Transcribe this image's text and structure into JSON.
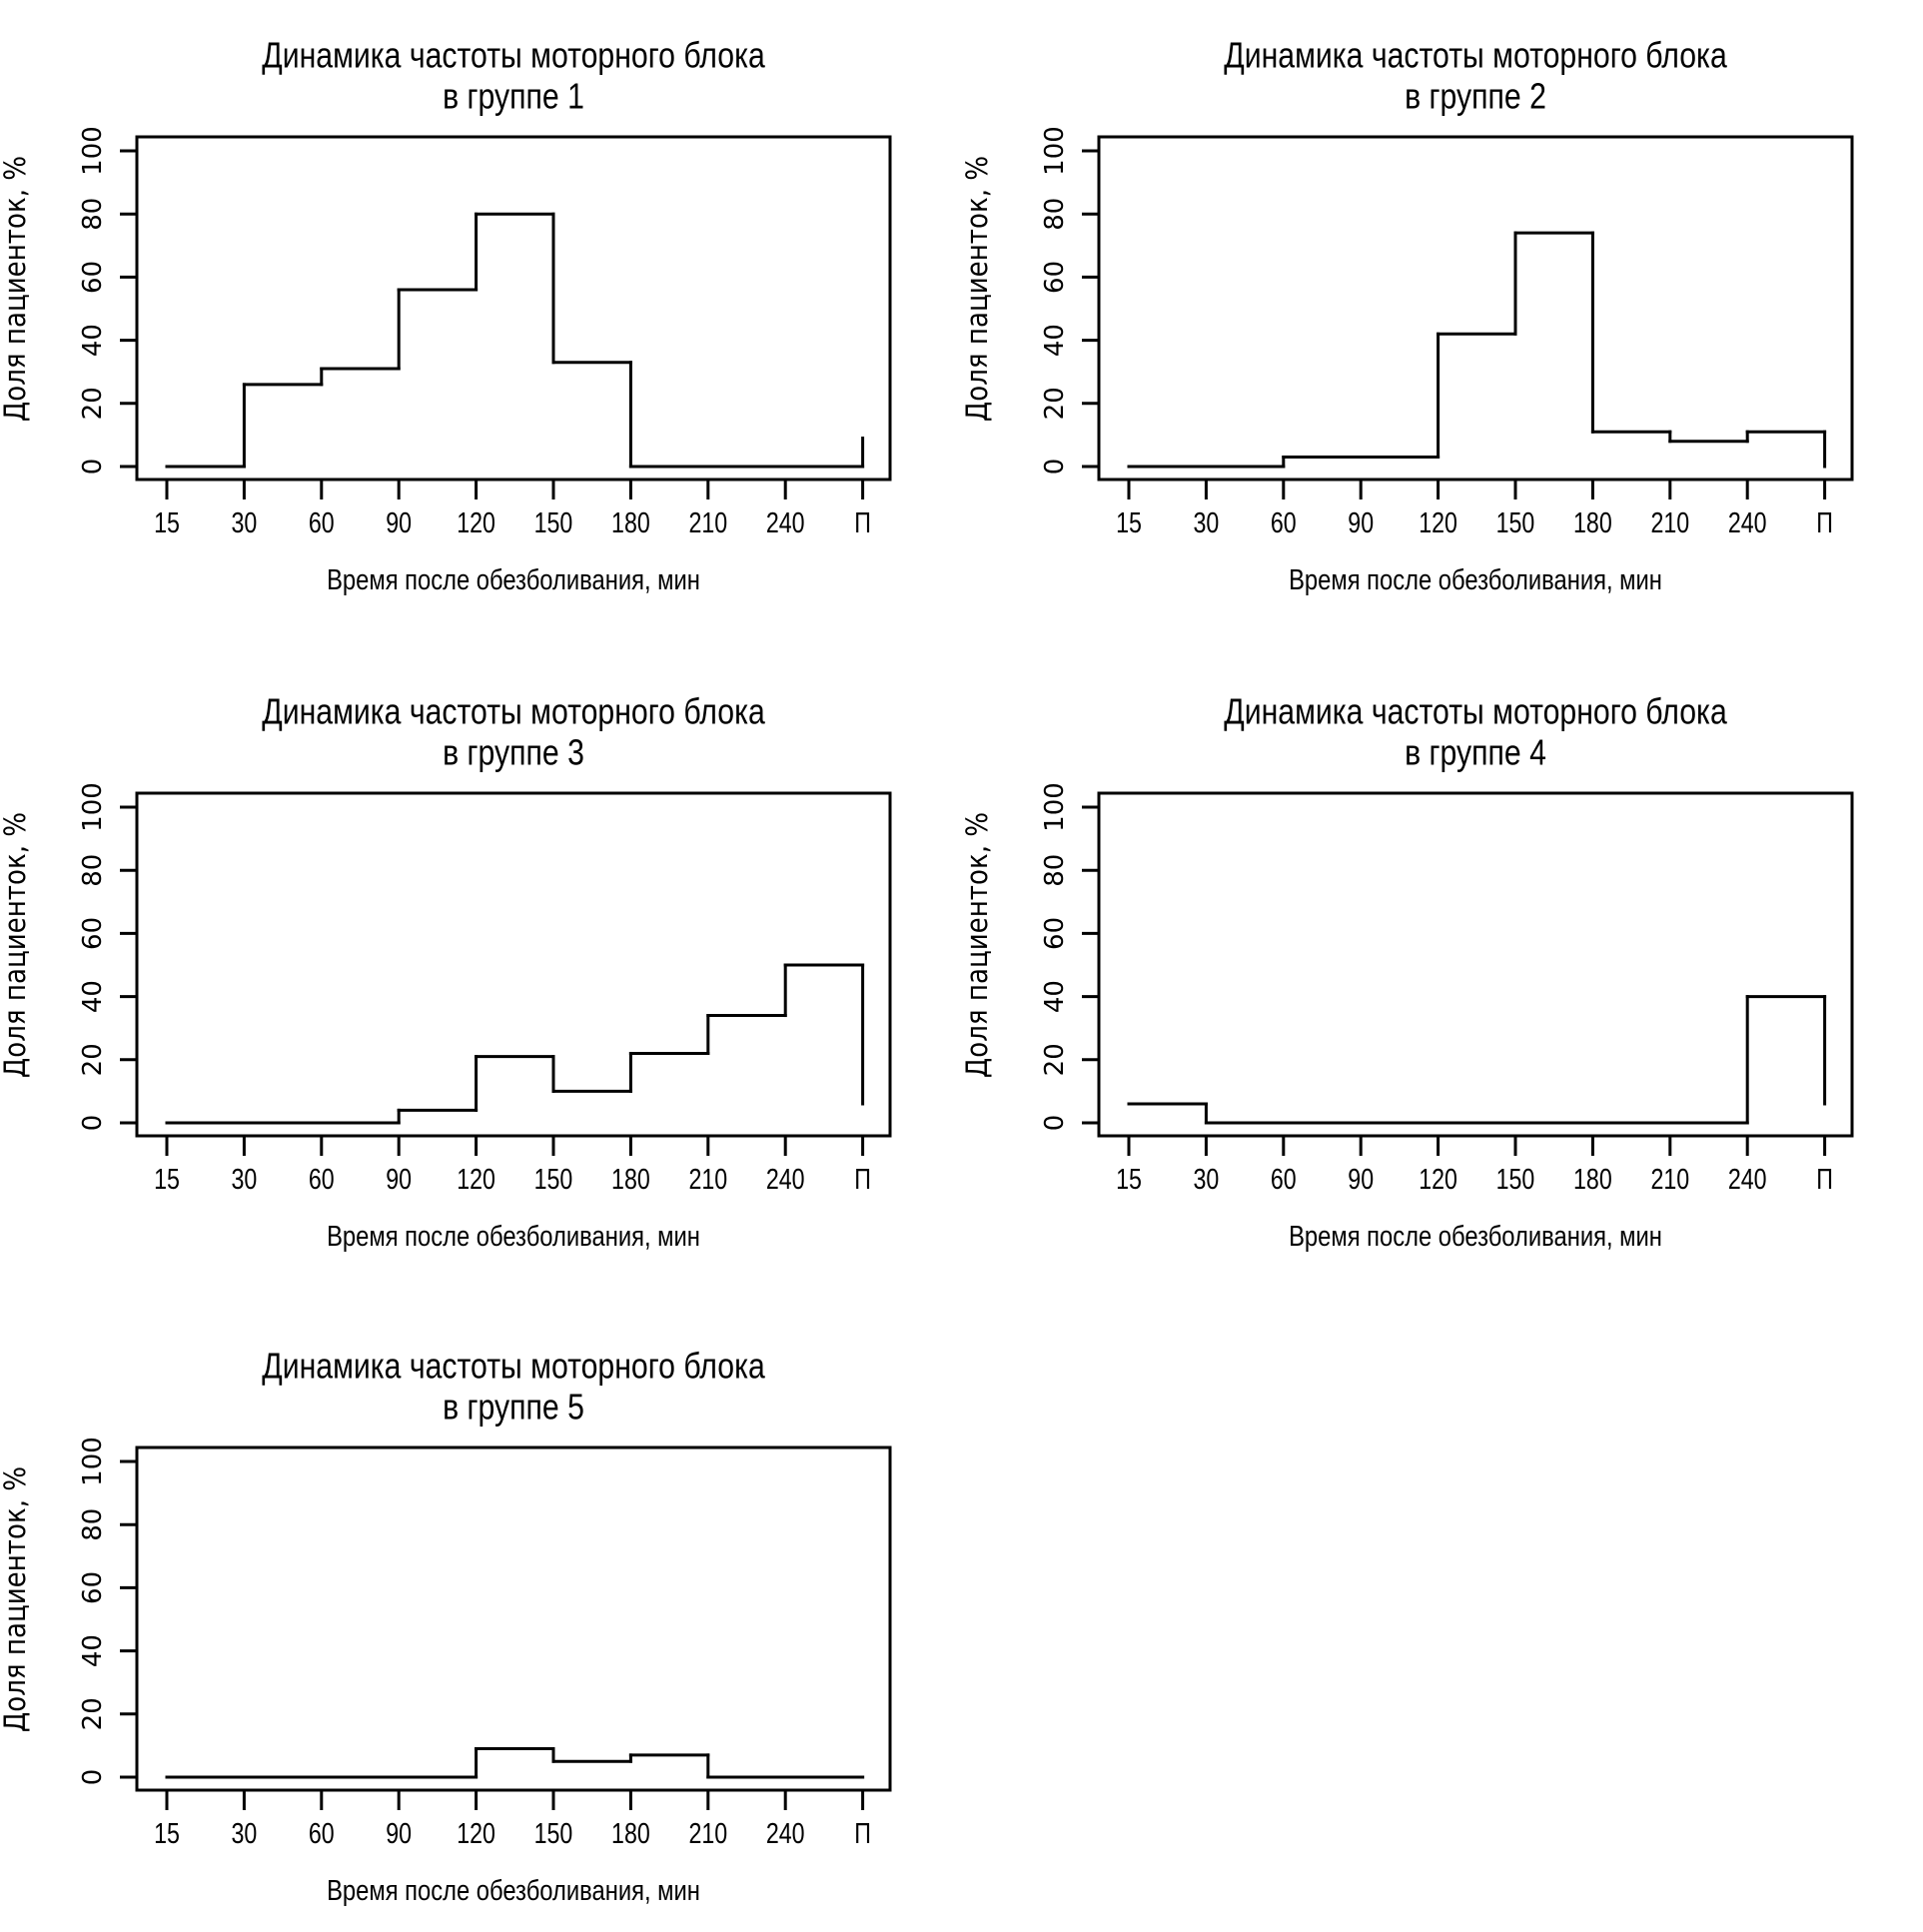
{
  "colors": {
    "ink": "#000000",
    "background": "#ffffff"
  },
  "chart_data": [
    {
      "type": "line",
      "step": true,
      "title": [
        "Динамика частоты моторного блока",
        "в группе 1"
      ],
      "xlabel": "Время после обезболивания, мин",
      "ylabel": "Доля пациенток, %",
      "categories": [
        "15",
        "30",
        "60",
        "90",
        "120",
        "150",
        "180",
        "210",
        "240",
        "П"
      ],
      "y_ticks": [
        "0",
        "20",
        "40",
        "60",
        "80",
        "100"
      ],
      "ylim": [
        0,
        100
      ],
      "grid": false,
      "values": [
        0,
        26,
        31,
        56,
        80,
        33,
        0,
        0,
        0,
        9
      ]
    },
    {
      "type": "line",
      "step": true,
      "title": [
        "Динамика частоты моторного блока",
        "в группе 2"
      ],
      "xlabel": "Время после обезболивания, мин",
      "ylabel": "Доля пациенток, %",
      "categories": [
        "15",
        "30",
        "60",
        "90",
        "120",
        "150",
        "180",
        "210",
        "240",
        "П"
      ],
      "y_ticks": [
        "0",
        "20",
        "40",
        "60",
        "80",
        "100"
      ],
      "ylim": [
        0,
        100
      ],
      "grid": false,
      "values": [
        0,
        0,
        3,
        3,
        42,
        74,
        11,
        8,
        11,
        0
      ]
    },
    {
      "type": "line",
      "step": true,
      "title": [
        "Динамика частоты моторного блока",
        "в группе 3"
      ],
      "xlabel": "Время после обезболивания, мин",
      "ylabel": "Доля пациенток, %",
      "categories": [
        "15",
        "30",
        "60",
        "90",
        "120",
        "150",
        "180",
        "210",
        "240",
        "П"
      ],
      "y_ticks": [
        "0",
        "20",
        "40",
        "60",
        "80",
        "100"
      ],
      "ylim": [
        0,
        100
      ],
      "grid": false,
      "values": [
        0,
        0,
        0,
        4,
        21,
        10,
        22,
        34,
        50,
        6
      ]
    },
    {
      "type": "line",
      "step": true,
      "title": [
        "Динамика частоты моторного блока",
        "в группе 4"
      ],
      "xlabel": "Время после обезболивания, мин",
      "ylabel": "Доля пациенток, %",
      "categories": [
        "15",
        "30",
        "60",
        "90",
        "120",
        "150",
        "180",
        "210",
        "240",
        "П"
      ],
      "y_ticks": [
        "0",
        "20",
        "40",
        "60",
        "80",
        "100"
      ],
      "ylim": [
        0,
        100
      ],
      "grid": false,
      "values": [
        6,
        0,
        0,
        0,
        0,
        0,
        0,
        0,
        40,
        6
      ]
    },
    {
      "type": "line",
      "step": true,
      "title": [
        "Динамика частоты моторного блока",
        "в группе 5"
      ],
      "xlabel": "Время после обезболивания, мин",
      "ylabel": "Доля пациенток, %",
      "categories": [
        "15",
        "30",
        "60",
        "90",
        "120",
        "150",
        "180",
        "210",
        "240",
        "П"
      ],
      "y_ticks": [
        "0",
        "20",
        "40",
        "60",
        "80",
        "100"
      ],
      "ylim": [
        0,
        100
      ],
      "grid": false,
      "values": [
        0,
        0,
        0,
        0,
        9,
        5,
        7,
        0,
        0,
        0
      ]
    }
  ]
}
